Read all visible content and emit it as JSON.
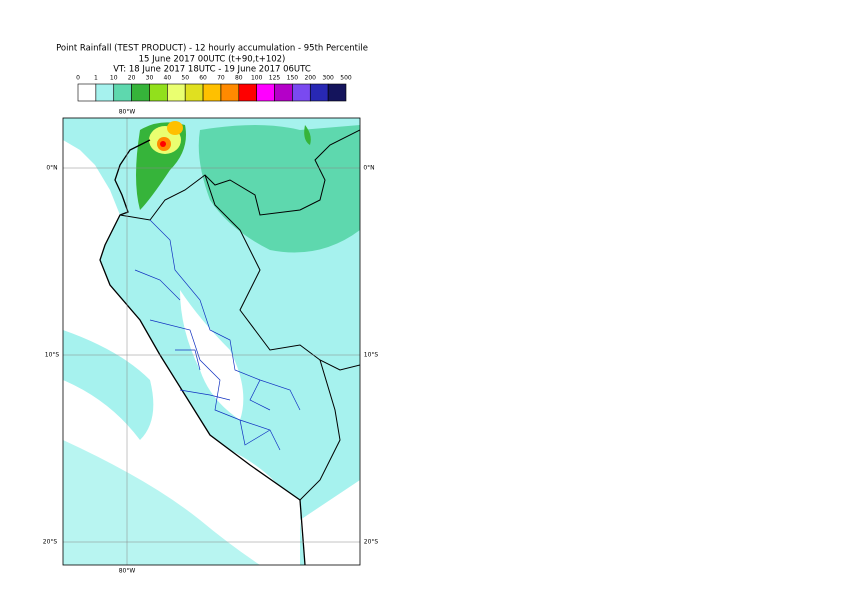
{
  "title": [
    "Point Rainfall (TEST PRODUCT) - 12 hourly accumulation - 95th Percentile",
    "15 June 2017 00UTC (t+90,t+102)",
    "VT: 18 June 2017 18UTC - 19 June 2017 06UTC"
  ],
  "legend": {
    "thresholds": [
      0,
      1,
      10,
      20,
      30,
      40,
      50,
      60,
      70,
      80,
      100,
      125,
      150,
      200,
      300,
      500
    ],
    "colors": [
      "#ffffff",
      "#a6f2ee",
      "#5ed8ae",
      "#36b43a",
      "#92e01c",
      "#eaff70",
      "#e0e020",
      "#ffc000",
      "#ff8a00",
      "#ff0000",
      "#ff00ff",
      "#b400c8",
      "#7a4af0",
      "#2828b4",
      "#14145c"
    ]
  },
  "map": {
    "lat_labels": [
      "0°N",
      "10°S",
      "20°S"
    ],
    "lon_labels": [
      "80°W"
    ]
  }
}
